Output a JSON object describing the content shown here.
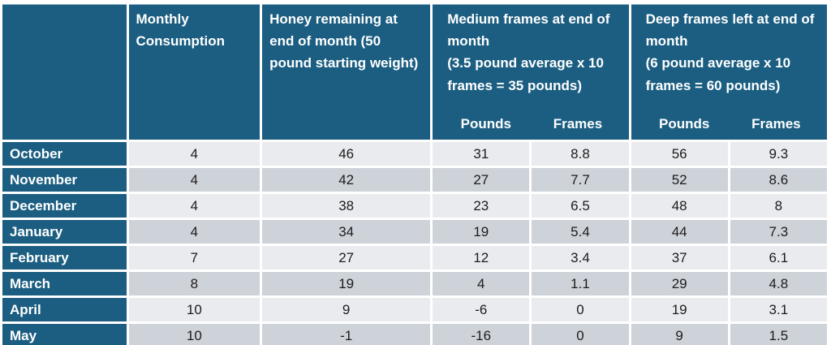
{
  "colors": {
    "header_teal": "#1B5E81",
    "row_dark_gray": "#CED2D9",
    "row_light_gray": "#E9EBEF",
    "header_text": "#FFFFFF",
    "data_text": "#1C1C1C"
  },
  "chart_data": {
    "type": "table",
    "title": "",
    "header": {
      "corner": "",
      "monthly_consumption": "Monthly Consumption",
      "honey_remaining": "Honey remaining at end of month (50 pound starting weight)",
      "medium_group": "Medium frames at end of month\n(3.5 pound average x 10 frames = 35 pounds)",
      "deep_group": "Deep frames left at end of month\n(6 pound average x 10 frames = 60 pounds)",
      "pounds_label": "Pounds",
      "frames_label": "Frames"
    },
    "rows": [
      {
        "month": "October",
        "consumption": 4,
        "honey": 46,
        "medium_pounds": 31,
        "medium_frames": 8.8,
        "deep_pounds": 56,
        "deep_frames": 9.3
      },
      {
        "month": "November",
        "consumption": 4,
        "honey": 42,
        "medium_pounds": 27,
        "medium_frames": 7.7,
        "deep_pounds": 52,
        "deep_frames": 8.6
      },
      {
        "month": "December",
        "consumption": 4,
        "honey": 38,
        "medium_pounds": 23,
        "medium_frames": 6.5,
        "deep_pounds": 48,
        "deep_frames": 8
      },
      {
        "month": "January",
        "consumption": 4,
        "honey": 34,
        "medium_pounds": 19,
        "medium_frames": 5.4,
        "deep_pounds": 44,
        "deep_frames": 7.3
      },
      {
        "month": "February",
        "consumption": 7,
        "honey": 27,
        "medium_pounds": 12,
        "medium_frames": 3.4,
        "deep_pounds": 37,
        "deep_frames": 6.1
      },
      {
        "month": "March",
        "consumption": 8,
        "honey": 19,
        "medium_pounds": 4,
        "medium_frames": 1.1,
        "deep_pounds": 29,
        "deep_frames": 4.8
      },
      {
        "month": "April",
        "consumption": 10,
        "honey": 9,
        "medium_pounds": -6,
        "medium_frames": 0,
        "deep_pounds": 19,
        "deep_frames": 3.1
      },
      {
        "month": "May",
        "consumption": 10,
        "honey": -1,
        "medium_pounds": -16,
        "medium_frames": 0,
        "deep_pounds": 9,
        "deep_frames": 1.5
      }
    ]
  }
}
